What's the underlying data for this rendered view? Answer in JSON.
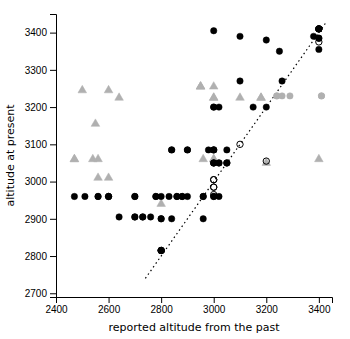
{
  "chart_data": {
    "type": "scatter",
    "xlabel": "reported altitude from the past",
    "ylabel": "altitude at present",
    "xlim": [
      2400,
      3450
    ],
    "ylim": [
      2690,
      3450
    ],
    "xticks": [
      2400,
      2600,
      2800,
      3000,
      3200,
      3400
    ],
    "yticks": [
      2700,
      2800,
      2900,
      3000,
      3100,
      3200,
      3300,
      3400
    ],
    "grid": false,
    "series": [
      {
        "type": "line",
        "line_style": "dotted",
        "color": "black",
        "x": [
          2740,
          3430
        ],
        "values": [
          2740,
          3430
        ]
      },
      {
        "marker": "triangle",
        "color": "#b0b0b0",
        "x": [
          2470,
          2470,
          2500,
          2540,
          2550,
          2560,
          2560,
          2600,
          2600,
          2640,
          2800,
          2950,
          2950,
          2950,
          2960,
          3000,
          3000,
          3000,
          3000,
          3000,
          3100,
          3180,
          3180,
          3200,
          3400
        ],
        "values": [
          3060,
          3060,
          3245,
          3060,
          3155,
          3060,
          3010,
          3010,
          3245,
          3225,
          2940,
          3255,
          3255,
          3255,
          3060,
          3255,
          3225,
          3225,
          3060,
          3060,
          3225,
          3225,
          3225,
          3050,
          3060
        ]
      },
      {
        "marker": "circle",
        "color": "#b0b0b0",
        "x": [
          3240,
          3240,
          3260,
          3290,
          3410,
          3410
        ],
        "values": [
          3230,
          3230,
          3230,
          3230,
          3230,
          3230
        ]
      },
      {
        "marker": "circle",
        "color": "black",
        "x": [
          2470,
          2510,
          2560,
          2560,
          2600,
          2600,
          2600,
          2640,
          2700,
          2700,
          2700,
          2700,
          2730,
          2730,
          2760,
          2780,
          2780,
          2800,
          2800,
          2800,
          2800,
          2800,
          2800,
          2800,
          2830,
          2840,
          2840,
          2840,
          2860,
          2860,
          2880,
          2880,
          2900,
          2900,
          2900,
          2960,
          2960,
          2960,
          2980,
          3000,
          3000,
          3000,
          3000,
          3000,
          3000,
          3000,
          3000,
          3000,
          3000,
          3000,
          3020,
          3020,
          3020,
          3020,
          3050,
          3050,
          3100,
          3100,
          3150,
          3200,
          3200,
          3250,
          3260,
          3380,
          3400,
          3400,
          3400,
          3400,
          3400,
          3400
        ],
        "values": [
          2960,
          2960,
          2960,
          2960,
          2960,
          2960,
          2960,
          2905,
          2960,
          2960,
          2905,
          2905,
          2905,
          2905,
          2905,
          2960,
          2960,
          2960,
          2900,
          2900,
          2815,
          2815,
          2815,
          2815,
          2960,
          3085,
          3085,
          2900,
          2960,
          2960,
          2960,
          2960,
          3085,
          3085,
          2960,
          2960,
          2960,
          2900,
          3085,
          3405,
          3200,
          3200,
          3085,
          3085,
          3085,
          3050,
          3050,
          3050,
          2960,
          2960,
          3200,
          3050,
          3050,
          2960,
          3085,
          3050,
          3390,
          3270,
          3200,
          3380,
          3200,
          3350,
          3270,
          3390,
          3410,
          3410,
          3410,
          3385,
          3385,
          3355
        ]
      },
      {
        "marker": "open-circle",
        "color": "black",
        "x": [
          2800,
          3000,
          3000,
          3000,
          3000,
          3000,
          3050,
          3100,
          3200,
          3400,
          3400,
          3400
        ],
        "values": [
          2815,
          3005,
          3005,
          2985,
          2985,
          2965,
          3050,
          3100,
          3055,
          3410,
          3410,
          3375
        ]
      }
    ]
  }
}
